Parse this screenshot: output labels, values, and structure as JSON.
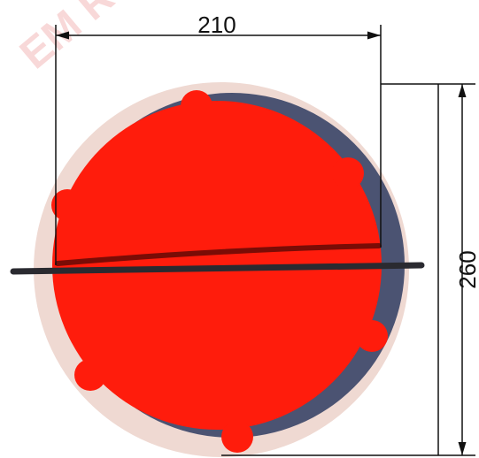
{
  "dimensions": {
    "width": "210",
    "height": "260"
  },
  "watermark": "EM R"
}
